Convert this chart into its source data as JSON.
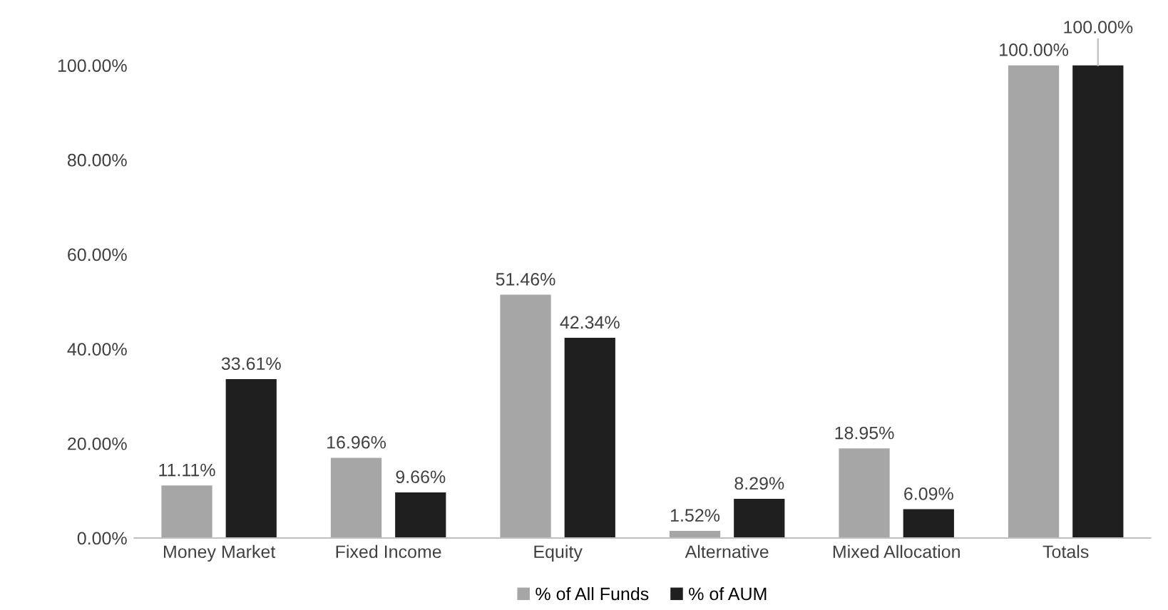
{
  "chart_data": {
    "type": "bar",
    "categories": [
      "Money Market",
      "Fixed Income",
      "Equity",
      "Alternative",
      "Mixed Allocation",
      "Totals"
    ],
    "series": [
      {
        "name": "% of All Funds",
        "color": "#a6a6a6",
        "values": [
          11.11,
          16.96,
          51.46,
          1.52,
          18.95,
          100
        ],
        "value_labels": [
          "11.11%",
          "16.96%",
          "51.46%",
          "1.52%",
          "18.95%",
          "100.00%"
        ]
      },
      {
        "name": "% of AUM",
        "color": "#1f1f1f",
        "values": [
          33.61,
          9.66,
          42.34,
          8.29,
          6.09,
          100
        ],
        "value_labels": [
          "33.61%",
          "9.66%",
          "42.34%",
          "8.29%",
          "6.09%",
          "100.00%"
        ]
      }
    ],
    "ylim": [
      0,
      100
    ],
    "yticks": [
      {
        "value": 0,
        "label": "0.00%"
      },
      {
        "value": 20,
        "label": "20.00%"
      },
      {
        "value": 40,
        "label": "40.00%"
      },
      {
        "value": 60,
        "label": "60.00%"
      },
      {
        "value": 80,
        "label": "80.00%"
      },
      {
        "value": 100,
        "label": "100.00%"
      }
    ],
    "grid": false,
    "legend": "bottom"
  }
}
